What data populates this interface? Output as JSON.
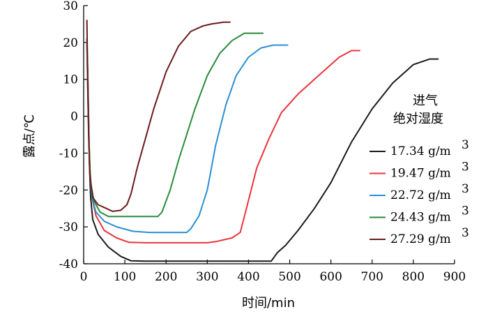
{
  "chart_data": {
    "type": "line",
    "xlabel": "时间/min",
    "ylabel": "露点/℃",
    "xlim": [
      0,
      900
    ],
    "ylim": [
      -40,
      30
    ],
    "x_ticks": [
      0,
      100,
      200,
      300,
      400,
      500,
      600,
      700,
      800,
      900
    ],
    "y_ticks": [
      -40,
      -30,
      -20,
      -10,
      0,
      10,
      20,
      30
    ],
    "grid": false,
    "legend": {
      "title_lines": [
        "进气",
        "绝对湿度"
      ],
      "placement": "right",
      "superscript": "3"
    },
    "series": [
      {
        "name": "17.34 g/m",
        "color": "#1a1a1a",
        "points": [
          [
            8,
            21
          ],
          [
            10,
            12
          ],
          [
            12,
            0
          ],
          [
            14,
            -13
          ],
          [
            17,
            -22
          ],
          [
            22,
            -28
          ],
          [
            35,
            -32
          ],
          [
            60,
            -35.5
          ],
          [
            90,
            -38
          ],
          [
            115,
            -39.2
          ],
          [
            150,
            -39.3
          ],
          [
            300,
            -39.3
          ],
          [
            455,
            -39.3
          ],
          [
            470,
            -37
          ],
          [
            490,
            -35
          ],
          [
            520,
            -31
          ],
          [
            560,
            -25
          ],
          [
            600,
            -18
          ],
          [
            650,
            -7
          ],
          [
            700,
            2
          ],
          [
            750,
            9
          ],
          [
            800,
            14
          ],
          [
            840,
            15.5
          ],
          [
            860,
            15.5
          ]
        ]
      },
      {
        "name": "19.47 g/m",
        "color": "#e8343a",
        "points": [
          [
            8,
            20
          ],
          [
            10,
            10
          ],
          [
            12,
            -2
          ],
          [
            15,
            -14
          ],
          [
            20,
            -22
          ],
          [
            30,
            -27
          ],
          [
            50,
            -31
          ],
          [
            80,
            -33
          ],
          [
            110,
            -34.2
          ],
          [
            150,
            -34.3
          ],
          [
            300,
            -34.3
          ],
          [
            320,
            -34
          ],
          [
            360,
            -33
          ],
          [
            380,
            -31.5
          ],
          [
            395,
            -25
          ],
          [
            420,
            -14
          ],
          [
            450,
            -6
          ],
          [
            480,
            1
          ],
          [
            520,
            6
          ],
          [
            570,
            11
          ],
          [
            620,
            16
          ],
          [
            650,
            17.8
          ],
          [
            670,
            17.8
          ]
        ]
      },
      {
        "name": "22.72 g/m",
        "color": "#2a8fd4",
        "points": [
          [
            8,
            20
          ],
          [
            10,
            9
          ],
          [
            12,
            -3
          ],
          [
            15,
            -15
          ],
          [
            20,
            -22
          ],
          [
            30,
            -26
          ],
          [
            50,
            -28.5
          ],
          [
            80,
            -30
          ],
          [
            120,
            -31.2
          ],
          [
            160,
            -31.5
          ],
          [
            250,
            -31.5
          ],
          [
            260,
            -30.5
          ],
          [
            280,
            -27
          ],
          [
            300,
            -20
          ],
          [
            320,
            -8
          ],
          [
            345,
            3
          ],
          [
            370,
            11
          ],
          [
            400,
            16
          ],
          [
            430,
            18.5
          ],
          [
            460,
            19.3
          ],
          [
            495,
            19.3
          ]
        ]
      },
      {
        "name": "24.43 g/m",
        "color": "#2a8a3a",
        "points": [
          [
            8,
            19
          ],
          [
            10,
            7
          ],
          [
            13,
            -8
          ],
          [
            17,
            -18
          ],
          [
            25,
            -23
          ],
          [
            40,
            -26
          ],
          [
            60,
            -27.2
          ],
          [
            100,
            -27.2
          ],
          [
            180,
            -27.2
          ],
          [
            190,
            -26
          ],
          [
            210,
            -20
          ],
          [
            230,
            -12
          ],
          [
            250,
            -5
          ],
          [
            270,
            2
          ],
          [
            300,
            11
          ],
          [
            330,
            17
          ],
          [
            360,
            20.5
          ],
          [
            390,
            22.5
          ],
          [
            435,
            22.5
          ]
        ]
      },
      {
        "name": "27.29 g/m",
        "color": "#6b1b1b",
        "points": [
          [
            8,
            26
          ],
          [
            10,
            8
          ],
          [
            12,
            -5
          ],
          [
            15,
            -16
          ],
          [
            22,
            -22
          ],
          [
            35,
            -24
          ],
          [
            55,
            -25
          ],
          [
            70,
            -25.8
          ],
          [
            90,
            -25.5
          ],
          [
            105,
            -24
          ],
          [
            115,
            -21
          ],
          [
            130,
            -14
          ],
          [
            150,
            -6
          ],
          [
            170,
            2
          ],
          [
            200,
            12
          ],
          [
            230,
            19
          ],
          [
            260,
            23
          ],
          [
            290,
            24.5
          ],
          [
            310,
            25
          ],
          [
            340,
            25.5
          ],
          [
            355,
            25.5
          ]
        ]
      }
    ]
  }
}
